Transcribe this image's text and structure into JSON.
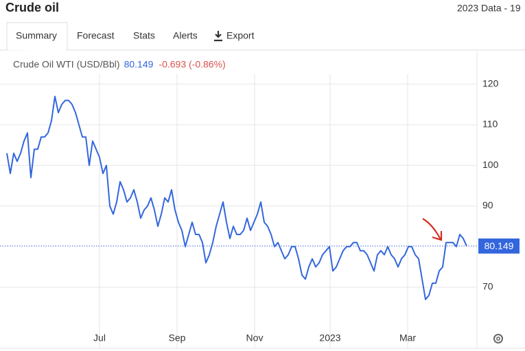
{
  "header": {
    "title": "Crude oil",
    "data_label": "2023 Data - 19"
  },
  "tabs": [
    "Summary",
    "Forecast",
    "Stats",
    "Alerts",
    "Export"
  ],
  "chart_data": {
    "type": "line",
    "series": [
      {
        "name": "Crude Oil WTI (USD/Bbl)",
        "color": "#3366dd",
        "values": [
          103,
          98,
          103,
          101,
          103,
          106,
          108,
          97,
          104,
          104,
          107,
          107,
          108,
          111,
          117,
          113,
          115,
          116,
          116,
          115,
          113,
          110,
          107,
          107,
          100,
          106,
          104,
          102,
          98,
          100,
          90,
          88,
          91,
          96,
          94,
          91,
          92,
          94,
          91,
          87,
          89,
          90,
          92,
          89,
          85,
          88,
          92,
          91,
          94,
          89,
          86,
          84,
          80,
          83,
          86,
          83,
          83,
          81,
          76,
          78,
          81,
          85,
          88,
          91,
          86,
          82,
          85,
          83,
          83,
          84,
          87,
          84,
          86,
          88,
          91,
          86,
          85,
          83,
          80,
          81,
          79,
          77,
          78,
          80,
          80,
          77,
          73,
          72,
          75,
          77,
          75,
          76,
          78,
          79,
          80,
          74,
          75,
          77,
          79,
          80,
          80,
          81,
          81,
          79,
          79,
          78,
          76,
          74,
          78,
          79,
          78,
          80,
          78,
          77,
          75,
          77,
          78,
          80,
          80,
          78,
          77,
          72,
          67,
          68,
          71,
          71,
          74,
          75,
          81,
          81,
          81,
          80,
          83,
          82,
          80.149
        ]
      }
    ],
    "change": "-0.693 (-0.86%)",
    "change_color": "#d9534f",
    "xlim": [
      0,
      137
    ],
    "xticks": [
      {
        "value": 27,
        "label": "Jul"
      },
      {
        "value": 49.6,
        "label": "Sep"
      },
      {
        "value": 72.2,
        "label": "Nov"
      },
      {
        "value": 94.2,
        "label": "2023"
      },
      {
        "value": 116.8,
        "label": "Mar"
      }
    ],
    "ylim": [
      59.7,
      122.5
    ],
    "yticks": [
      70,
      90,
      100,
      110,
      120
    ],
    "grid": true
  }
}
